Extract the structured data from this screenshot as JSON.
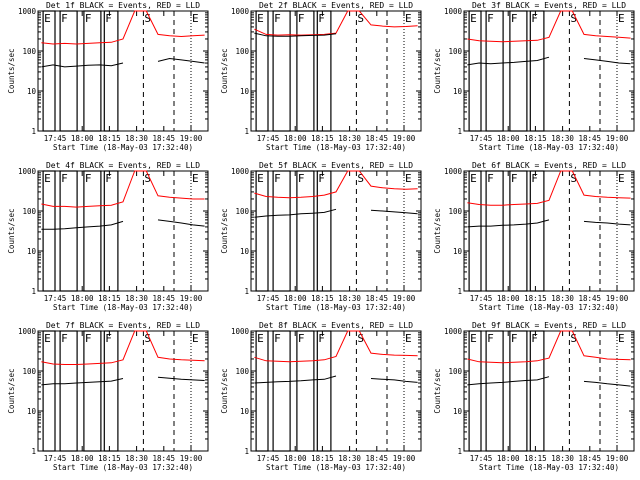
{
  "chart_data": [
    {
      "type": "line",
      "title": "Det 1f BLACK = Events, RED = LLD",
      "xlabel": "Start Time (18-May-03 17:32:40)",
      "ylabel": "Counts/sec",
      "x_ticks": [
        "17:45",
        "18:00",
        "18:15",
        "18:30",
        "18:45",
        "19:00"
      ],
      "y_ticks": [
        "1",
        "10",
        "100",
        "1000"
      ],
      "ylim": [
        1,
        1000
      ],
      "yscale": "log",
      "markers": [
        "E",
        "F",
        "F",
        "F",
        "S",
        "E"
      ],
      "series": [
        {
          "color": "#ff0000",
          "values": [
            160,
            150,
            155,
            150,
            155,
            160,
            165,
            200,
            1200,
            1200,
            260,
            240,
            230,
            240,
            250
          ]
        },
        {
          "color": "#000000",
          "values": [
            40,
            45,
            40,
            42,
            44,
            45,
            43,
            50,
            null,
            null,
            55,
            65,
            60,
            55,
            50
          ]
        }
      ]
    },
    {
      "type": "line",
      "title": "Det 2f BLACK = Events, RED = LLD",
      "xlabel": "Start Time (18-May-03 17:32:40)",
      "ylabel": "Counts/sec",
      "x_ticks": [
        "17:45",
        "18:00",
        "18:15",
        "18:30",
        "18:45",
        "19:00"
      ],
      "y_ticks": [
        "1",
        "10",
        "100",
        "1000"
      ],
      "ylim": [
        1,
        1000
      ],
      "yscale": "log",
      "markers": [
        "E",
        "F",
        "F",
        "F",
        "S",
        "E"
      ],
      "series": [
        {
          "color": "#ff0000",
          "values": [
            350,
            260,
            250,
            255,
            250,
            255,
            260,
            280,
            1200,
            1200,
            450,
            420,
            400,
            410,
            430
          ]
        },
        {
          "color": "#000000",
          "values": [
            280,
            240,
            235,
            235,
            240,
            245,
            250,
            270,
            null,
            null,
            null,
            null,
            null,
            null,
            null
          ]
        }
      ]
    },
    {
      "type": "line",
      "title": "Det 3f BLACK = Events, RED = LLD",
      "xlabel": "Start Time (18-May-03 17:32:40)",
      "ylabel": "Counts/sec",
      "x_ticks": [
        "17:45",
        "18:00",
        "18:15",
        "18:30",
        "18:45",
        "19:00"
      ],
      "y_ticks": [
        "1",
        "10",
        "100",
        "1000"
      ],
      "ylim": [
        1,
        1000
      ],
      "yscale": "log",
      "markers": [
        "E",
        "F",
        "F",
        "F",
        "S",
        "E"
      ],
      "series": [
        {
          "color": "#ff0000",
          "values": [
            200,
            180,
            175,
            170,
            175,
            180,
            185,
            220,
            1200,
            1200,
            260,
            240,
            230,
            220,
            210
          ]
        },
        {
          "color": "#000000",
          "values": [
            45,
            50,
            48,
            50,
            52,
            55,
            58,
            70,
            null,
            null,
            65,
            60,
            55,
            50,
            48
          ]
        }
      ]
    },
    {
      "type": "line",
      "title": "Det 4f BLACK = Events, RED = LLD",
      "xlabel": "Start Time (18-May-03 17:32:40)",
      "ylabel": "Counts/sec",
      "x_ticks": [
        "17:45",
        "18:00",
        "18:15",
        "18:30",
        "18:45",
        "19:00"
      ],
      "y_ticks": [
        "1",
        "10",
        "100",
        "1000"
      ],
      "ylim": [
        1,
        1000
      ],
      "yscale": "log",
      "markers": [
        "E",
        "F",
        "F",
        "F",
        "S",
        "E"
      ],
      "series": [
        {
          "color": "#ff0000",
          "values": [
            150,
            130,
            130,
            125,
            130,
            135,
            140,
            170,
            1200,
            1200,
            240,
            220,
            210,
            200,
            200
          ]
        },
        {
          "color": "#000000",
          "values": [
            35,
            35,
            36,
            38,
            40,
            42,
            45,
            55,
            null,
            null,
            60,
            55,
            50,
            45,
            42
          ]
        }
      ]
    },
    {
      "type": "line",
      "title": "Det 5f BLACK = Events, RED = LLD",
      "xlabel": "Start Time (18-May-03 17:32:40)",
      "ylabel": "Counts/sec",
      "x_ticks": [
        "17:45",
        "18:00",
        "18:15",
        "18:30",
        "18:45",
        "19:00"
      ],
      "y_ticks": [
        "1",
        "10",
        "100",
        "1000"
      ],
      "ylim": [
        1,
        1000
      ],
      "yscale": "log",
      "markers": [
        "E",
        "F",
        "F",
        "F",
        "S",
        "E"
      ],
      "series": [
        {
          "color": "#ff0000",
          "values": [
            280,
            230,
            220,
            215,
            220,
            230,
            250,
            300,
            1200,
            1200,
            420,
            380,
            360,
            350,
            360
          ]
        },
        {
          "color": "#000000",
          "values": [
            70,
            75,
            78,
            80,
            85,
            88,
            92,
            110,
            null,
            null,
            105,
            100,
            95,
            90,
            85
          ]
        }
      ]
    },
    {
      "type": "line",
      "title": "Det 6f BLACK = Events, RED = LLD",
      "xlabel": "Start Time (18-May-03 17:32:40)",
      "ylabel": "Counts/sec",
      "x_ticks": [
        "17:45",
        "18:00",
        "18:15",
        "18:30",
        "18:45",
        "19:00"
      ],
      "y_ticks": [
        "1",
        "10",
        "100",
        "1000"
      ],
      "ylim": [
        1,
        1000
      ],
      "yscale": "log",
      "markers": [
        "E",
        "F",
        "F",
        "F",
        "S",
        "E"
      ],
      "series": [
        {
          "color": "#ff0000",
          "values": [
            160,
            145,
            140,
            140,
            145,
            150,
            155,
            185,
            1200,
            1200,
            250,
            230,
            220,
            215,
            210
          ]
        },
        {
          "color": "#000000",
          "values": [
            40,
            42,
            42,
            44,
            45,
            47,
            50,
            60,
            null,
            null,
            55,
            52,
            50,
            47,
            45
          ]
        }
      ]
    },
    {
      "type": "line",
      "title": "Det 7f BLACK = Events, RED = LLD",
      "xlabel": "Start Time (18-May-03 17:32:40)",
      "ylabel": "Counts/sec",
      "x_ticks": [
        "17:45",
        "18:00",
        "18:15",
        "18:30",
        "18:45",
        "19:00"
      ],
      "y_ticks": [
        "1",
        "10",
        "100",
        "1000"
      ],
      "ylim": [
        1,
        1000
      ],
      "yscale": "log",
      "markers": [
        "E",
        "F",
        "F",
        "F",
        "S",
        "E"
      ],
      "series": [
        {
          "color": "#ff0000",
          "values": [
            170,
            150,
            145,
            145,
            150,
            155,
            160,
            190,
            1200,
            1200,
            220,
            200,
            190,
            185,
            180
          ]
        },
        {
          "color": "#000000",
          "values": [
            45,
            48,
            48,
            50,
            52,
            54,
            56,
            65,
            null,
            null,
            70,
            66,
            62,
            60,
            58
          ]
        }
      ]
    },
    {
      "type": "line",
      "title": "Det 8f BLACK = Events, RED = LLD",
      "xlabel": "Start Time (18-May-03 17:32:40)",
      "ylabel": "Counts/sec",
      "x_ticks": [
        "17:45",
        "18:00",
        "18:15",
        "18:30",
        "18:45",
        "19:00"
      ],
      "y_ticks": [
        "1",
        "10",
        "100",
        "1000"
      ],
      "ylim": [
        1,
        1000
      ],
      "yscale": "log",
      "markers": [
        "E",
        "F",
        "F",
        "F",
        "S",
        "E"
      ],
      "series": [
        {
          "color": "#ff0000",
          "values": [
            220,
            180,
            175,
            170,
            175,
            180,
            190,
            230,
            1200,
            1200,
            280,
            260,
            250,
            245,
            240
          ]
        },
        {
          "color": "#000000",
          "values": [
            50,
            52,
            54,
            55,
            57,
            60,
            62,
            75,
            null,
            null,
            65,
            62,
            60,
            55,
            52
          ]
        }
      ]
    },
    {
      "type": "line",
      "title": "Det 9f BLACK = Events, RED = LLD",
      "xlabel": "Start Time (18-May-03 17:32:40)",
      "ylabel": "Counts/sec",
      "x_ticks": [
        "17:45",
        "18:00",
        "18:15",
        "18:30",
        "18:45",
        "19:00"
      ],
      "y_ticks": [
        "1",
        "10",
        "100",
        "1000"
      ],
      "ylim": [
        1,
        1000
      ],
      "yscale": "log",
      "markers": [
        "E",
        "F",
        "F",
        "F",
        "S",
        "E"
      ],
      "series": [
        {
          "color": "#ff0000",
          "values": [
            200,
            170,
            165,
            160,
            165,
            170,
            180,
            210,
            1200,
            1200,
            240,
            220,
            200,
            195,
            190
          ]
        },
        {
          "color": "#000000",
          "values": [
            45,
            48,
            50,
            52,
            55,
            58,
            60,
            72,
            null,
            null,
            55,
            52,
            48,
            45,
            42
          ]
        }
      ]
    }
  ]
}
